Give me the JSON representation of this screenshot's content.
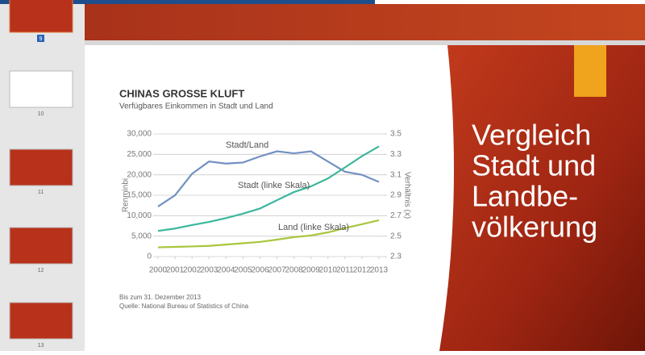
{
  "thumbnails": [
    {
      "number": "9"
    },
    {
      "number": "10"
    },
    {
      "number": "11"
    },
    {
      "number": "12"
    },
    {
      "number": "13"
    }
  ],
  "slide": {
    "title_lines": [
      "Vergleich",
      "Stadt und",
      "Landbe-",
      "völkerung"
    ]
  },
  "chart_data": {
    "type": "line",
    "title": "CHINAS GROSSE KLUFT",
    "subtitle": "Verfügbares Einkommen in Stadt und Land",
    "y_label": "Renminbi",
    "y2_label": "Verhältnis (x)",
    "x": [
      2000,
      2001,
      2002,
      2003,
      2004,
      2005,
      2006,
      2007,
      2008,
      2009,
      2010,
      2011,
      2012,
      2013
    ],
    "xticks": [
      2000,
      2001,
      2002,
      2003,
      2004,
      2005,
      2006,
      2007,
      2008,
      2009,
      2010,
      2011,
      2012,
      2013
    ],
    "xlim": [
      2000,
      2013
    ],
    "ylim": [
      0,
      30000
    ],
    "yticks": [
      0,
      {
        "value": 5000,
        "label": "5,000"
      },
      {
        "value": 10000,
        "label": "10,000"
      },
      {
        "value": 15000,
        "label": "15,000"
      },
      {
        "value": 20000,
        "label": "20,000"
      },
      {
        "value": 25000,
        "label": "25,000"
      },
      {
        "value": 30000,
        "label": "30,000"
      }
    ],
    "y2lim": [
      2.3,
      3.5
    ],
    "y2ticks": [
      2.3,
      2.5,
      2.7,
      2.9,
      3.1,
      3.3,
      3.5
    ],
    "grid": true,
    "series": [
      {
        "name": "Stadt/Land",
        "color": "#7390c2",
        "axis": "y2",
        "values": [
          2.79,
          2.9,
          3.11,
          3.23,
          3.21,
          3.22,
          3.28,
          3.33,
          3.31,
          3.33,
          3.23,
          3.13,
          3.1,
          3.03
        ]
      },
      {
        "name": "Stadt (linke Skala)",
        "color": "#3db79b",
        "values": [
          6280,
          6860,
          7703,
          8472,
          9422,
          10493,
          11759,
          13786,
          15781,
          17175,
          19109,
          21810,
          24565,
          26955
        ]
      },
      {
        "name": "Land (linke Skala)",
        "color": "#a9c63d",
        "values": [
          2253,
          2366,
          2476,
          2622,
          2936,
          3255,
          3587,
          4140,
          4761,
          5153,
          5919,
          6977,
          7917,
          8896
        ]
      }
    ],
    "notes": [
      "Bis zum 31. Dezember 2013",
      "Quelle: National Bureau of Statistics of China"
    ]
  }
}
